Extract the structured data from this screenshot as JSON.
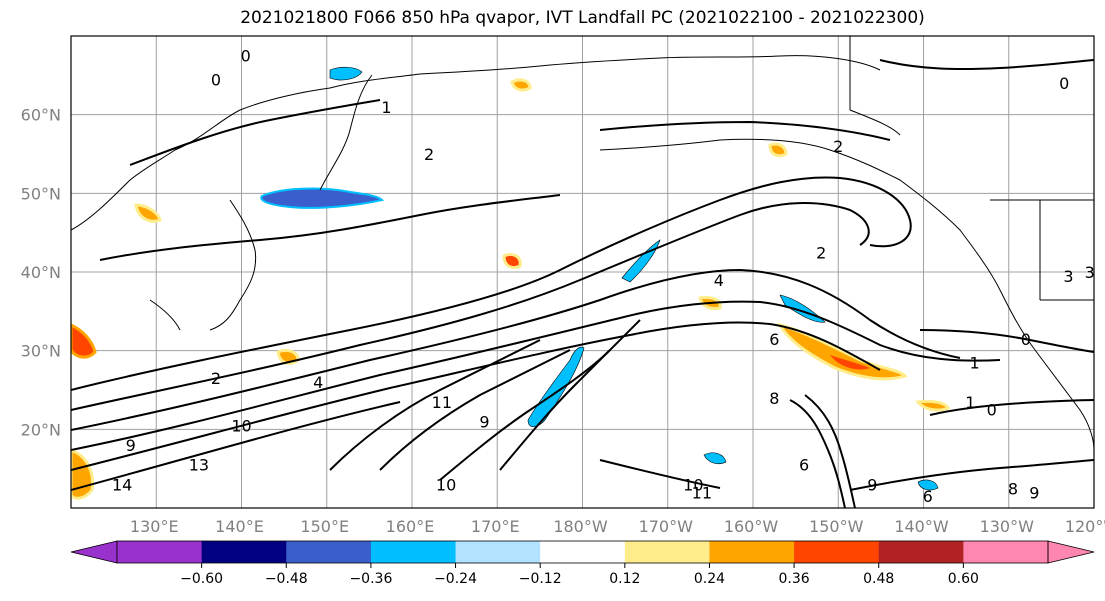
{
  "figure": {
    "title": "2021021800 F066 850 hPa qvapor, IVT Landfall PC (2021022100 - 2021022300)"
  },
  "map": {
    "projection": "PlateCarree",
    "lon_range": [
      120,
      240
    ],
    "lat_range": [
      10,
      70
    ],
    "gridlines": true,
    "lat_ticks": [
      {
        "value": 60,
        "label": "60°N"
      },
      {
        "value": 50,
        "label": "50°N"
      },
      {
        "value": 40,
        "label": "40°N"
      },
      {
        "value": 30,
        "label": "30°N"
      },
      {
        "value": 20,
        "label": "20°N"
      }
    ],
    "lon_ticks": [
      {
        "value": 130,
        "label": "130°E"
      },
      {
        "value": 140,
        "label": "140°E"
      },
      {
        "value": 150,
        "label": "150°E"
      },
      {
        "value": 160,
        "label": "160°E"
      },
      {
        "value": 170,
        "label": "170°E"
      },
      {
        "value": 180,
        "label": "180°W"
      },
      {
        "value": 190,
        "label": "170°W"
      },
      {
        "value": 200,
        "label": "160°W"
      },
      {
        "value": 210,
        "label": "150°W"
      },
      {
        "value": 220,
        "label": "140°W"
      },
      {
        "value": 230,
        "label": "130°W"
      },
      {
        "value": 240,
        "label": "120°W"
      }
    ],
    "contour_labels": [
      {
        "text": "0",
        "lon": 140.5,
        "lat": 67.5
      },
      {
        "text": "0",
        "lon": 137,
        "lat": 64.5
      },
      {
        "text": "1",
        "lon": 157,
        "lat": 61
      },
      {
        "text": "2",
        "lon": 162,
        "lat": 55
      },
      {
        "text": "2",
        "lon": 210,
        "lat": 56
      },
      {
        "text": "0",
        "lon": 236.5,
        "lat": 64
      },
      {
        "text": "2",
        "lon": 208,
        "lat": 42.5
      },
      {
        "text": "4",
        "lon": 196,
        "lat": 39
      },
      {
        "text": "2",
        "lon": 137,
        "lat": 26.5
      },
      {
        "text": "4",
        "lon": 149,
        "lat": 26
      },
      {
        "text": "6",
        "lon": 202.5,
        "lat": 31.5
      },
      {
        "text": "8",
        "lon": 202.5,
        "lat": 24
      },
      {
        "text": "1",
        "lon": 226,
        "lat": 28.5
      },
      {
        "text": "1",
        "lon": 225.5,
        "lat": 23.5
      },
      {
        "text": "0",
        "lon": 228,
        "lat": 22.5
      },
      {
        "text": "0",
        "lon": 232,
        "lat": 31.5
      },
      {
        "text": "11",
        "lon": 163.5,
        "lat": 23.5
      },
      {
        "text": "10",
        "lon": 140,
        "lat": 20.5
      },
      {
        "text": "9",
        "lon": 127,
        "lat": 18
      },
      {
        "text": "13",
        "lon": 135,
        "lat": 15.5
      },
      {
        "text": "14",
        "lon": 126,
        "lat": 13
      },
      {
        "text": "9",
        "lon": 168.5,
        "lat": 21
      },
      {
        "text": "10",
        "lon": 164,
        "lat": 13
      },
      {
        "text": "10",
        "lon": 193,
        "lat": 13
      },
      {
        "text": "11",
        "lon": 194,
        "lat": 12
      },
      {
        "text": "6",
        "lon": 206,
        "lat": 15.5
      },
      {
        "text": "9",
        "lon": 214,
        "lat": 13
      },
      {
        "text": "6",
        "lon": 220.5,
        "lat": 11.5
      },
      {
        "text": "8",
        "lon": 230.5,
        "lat": 12.5
      },
      {
        "text": "9",
        "lon": 233,
        "lat": 12
      },
      {
        "text": "3",
        "lon": 237,
        "lat": 39.5
      },
      {
        "text": "3",
        "lon": 239.5,
        "lat": 40
      }
    ]
  },
  "colorbar": {
    "ticks": [
      "−0.60",
      "−0.48",
      "−0.36",
      "−0.24",
      "−0.12",
      "0.12",
      "0.24",
      "0.36",
      "0.48",
      "0.60"
    ],
    "colors": [
      "#9932cc",
      "#000080",
      "#3a5fcd",
      "#00bfff",
      "#b2e2ff",
      "#ffffff",
      "#ffec8b",
      "#ffa500",
      "#ff4500",
      "#b22222",
      "#ff86b0"
    ]
  }
}
